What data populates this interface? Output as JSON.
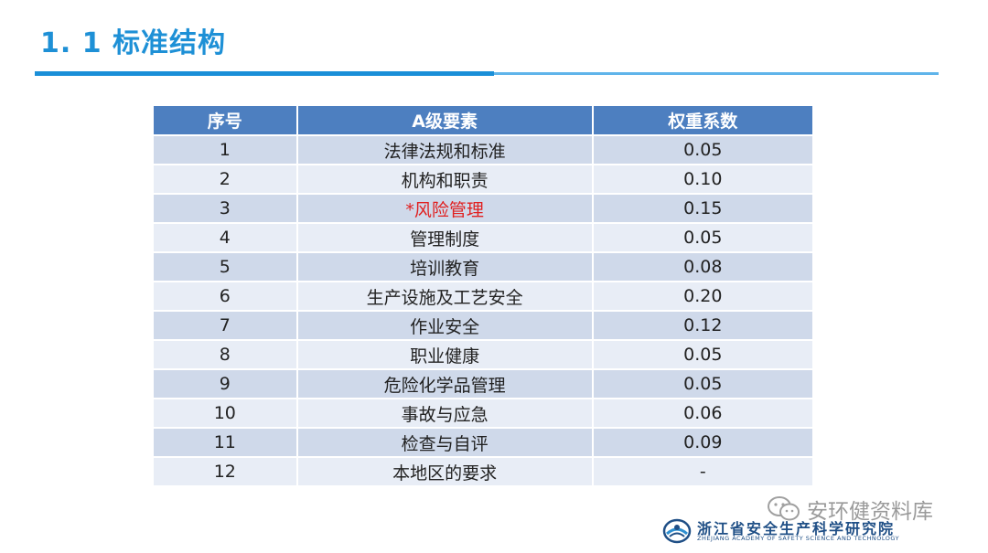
{
  "slide": {
    "title": "1. 1 标准结构"
  },
  "table": {
    "headers": [
      "序号",
      "A级要素",
      "权重系数"
    ],
    "rows": [
      {
        "no": "1",
        "element": "法律法规和标准",
        "weight": "0.05"
      },
      {
        "no": "2",
        "element": "机构和职责",
        "weight": "0.10"
      },
      {
        "no": "3",
        "element": "*风险管理",
        "weight": "0.15",
        "highlight": true
      },
      {
        "no": "4",
        "element": "管理制度",
        "weight": "0.05"
      },
      {
        "no": "5",
        "element": "培训教育",
        "weight": "0.08"
      },
      {
        "no": "6",
        "element": "生产设施及工艺安全",
        "weight": "0.20"
      },
      {
        "no": "7",
        "element": "作业安全",
        "weight": "0.12"
      },
      {
        "no": "8",
        "element": "职业健康",
        "weight": "0.05"
      },
      {
        "no": "9",
        "element": "危险化学品管理",
        "weight": "0.05"
      },
      {
        "no": "10",
        "element": "事故与应急",
        "weight": "0.06"
      },
      {
        "no": "11",
        "element": "检查与自评",
        "weight": "0.09"
      },
      {
        "no": "12",
        "element": "本地区的要求",
        "weight": "-"
      }
    ]
  },
  "watermark": {
    "text": "安环健资料库",
    "icon": "wechat-icon"
  },
  "institution": {
    "name_cn": "浙江省安全生产科学研究院",
    "name_en": "ZHEJIANG ACADEMY OF SAFETY SCIENCE AND TECHNOLOGY",
    "logo": "institution-logo"
  },
  "colors": {
    "title": "#1e90d6",
    "header_bg": "#4d7fc0",
    "row_odd": "#cfd9ea",
    "row_even": "#e8edf6",
    "highlight_text": "#e02020"
  }
}
